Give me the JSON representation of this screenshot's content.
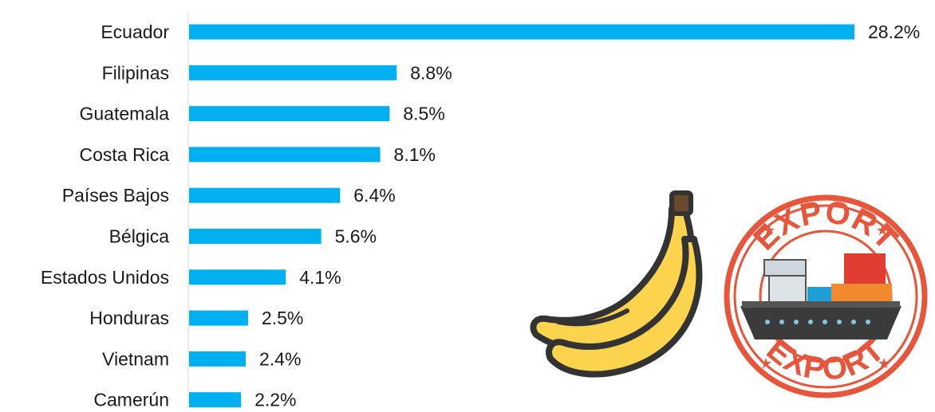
{
  "chart_data": {
    "type": "bar",
    "orientation": "horizontal",
    "categories": [
      "Ecuador",
      "Filipinas",
      "Guatemala",
      "Costa Rica",
      "Países Bajos",
      "Bélgica",
      "Estados Unidos",
      "Honduras",
      "Vietnam",
      "Camerún"
    ],
    "values": [
      28.2,
      8.8,
      8.5,
      8.1,
      6.4,
      5.6,
      4.1,
      2.5,
      2.4,
      2.2
    ],
    "value_labels": [
      "28.2%",
      "8.8%",
      "8.5%",
      "8.1%",
      "6.4%",
      "5.6%",
      "4.1%",
      "2.5%",
      "2.4%",
      "2.2%"
    ],
    "xlim": [
      0,
      28.2
    ],
    "grid": false,
    "legend": "none",
    "bar_color": "#00b0f0"
  },
  "illustrations": {
    "banana": {
      "icon": "banana-icon",
      "colors": {
        "peel": "#fbd34d",
        "outline": "#333333",
        "stem": "#6b4a2b"
      }
    },
    "export_stamp": {
      "icon": "export-ship-stamp-icon",
      "top_text": "EXPORT",
      "bottom_text": "EXPORT",
      "colors": {
        "ring": "#e8553a",
        "hull": "#3b3b3b",
        "container_red": "#e03c31",
        "container_orange": "#f08a2c",
        "container_blue": "#1e9fd8"
      }
    }
  }
}
